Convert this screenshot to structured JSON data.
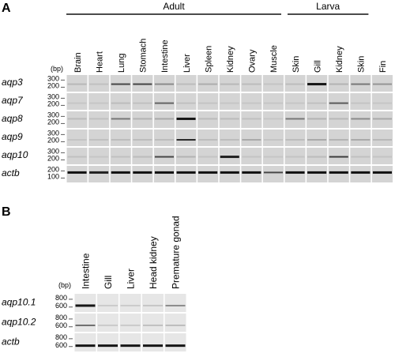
{
  "panel_a": {
    "letter": "A",
    "groups": [
      {
        "label": "Adult",
        "from": 0,
        "to": 10
      },
      {
        "label": "Larva",
        "from": 10,
        "to": 14
      }
    ],
    "bp_label": "(bp)",
    "lanes": [
      "Brain",
      "Heart",
      "Lung",
      "Stomach",
      "Intestine",
      "Liver",
      "Spleen",
      "Kidney",
      "Ovary",
      "Muscle",
      "Skin",
      "Gill",
      "Kidney",
      "Skin",
      "Fin"
    ],
    "rows": [
      {
        "gene": "aqp3",
        "ticks": [
          "300",
          "200"
        ],
        "band_pos": 0.55,
        "intensities": [
          0.12,
          0.08,
          0.7,
          0.72,
          0.35,
          0.1,
          0.18,
          0.12,
          0.1,
          0.06,
          0.1,
          0.95,
          0.15,
          0.45,
          0.3
        ]
      },
      {
        "gene": "aqp7",
        "ticks": [
          "300",
          "200"
        ],
        "band_pos": 0.6,
        "intensities": [
          0.05,
          0.05,
          0.1,
          0.08,
          0.55,
          0.08,
          0.06,
          0.05,
          0.05,
          0.05,
          0.05,
          0.08,
          0.6,
          0.06,
          0.05
        ]
      },
      {
        "gene": "aqp8",
        "ticks": [
          "300",
          "200"
        ],
        "band_pos": 0.45,
        "intensities": [
          0.1,
          0.08,
          0.45,
          0.15,
          0.2,
          0.95,
          0.1,
          0.1,
          0.08,
          0.05,
          0.45,
          0.15,
          0.12,
          0.35,
          0.2
        ]
      },
      {
        "gene": "aqp9",
        "ticks": [
          "300",
          "200"
        ],
        "band_pos": 0.62,
        "intensities": [
          0.06,
          0.08,
          0.1,
          0.1,
          0.1,
          0.85,
          0.1,
          0.1,
          0.2,
          0.06,
          0.1,
          0.2,
          0.15,
          0.2,
          0.12
        ]
      },
      {
        "gene": "aqp10",
        "ticks": [
          "300",
          "200"
        ],
        "band_pos": 0.55,
        "intensities": [
          0.08,
          0.05,
          0.08,
          0.1,
          0.7,
          0.15,
          0.06,
          0.9,
          0.06,
          0.05,
          0.06,
          0.1,
          0.75,
          0.08,
          0.06
        ]
      },
      {
        "gene": "actb",
        "ticks": [
          "200",
          "100"
        ],
        "band_pos": 0.4,
        "intensities": [
          0.98,
          0.9,
          0.98,
          0.98,
          0.98,
          0.98,
          0.98,
          0.98,
          0.98,
          0.7,
          0.98,
          0.98,
          0.98,
          0.98,
          0.98
        ]
      }
    ]
  },
  "panel_b": {
    "letter": "B",
    "bp_label": "(bp)",
    "lanes": [
      "Intestine",
      "Gill",
      "Liver",
      "Head kidney",
      "Premature gonad"
    ],
    "rows": [
      {
        "gene": "aqp10.1",
        "ticks": [
          "800",
          "600"
        ],
        "band_pos": 0.65,
        "intensities": [
          0.95,
          0.03,
          0.03,
          0.05,
          0.35
        ]
      },
      {
        "gene": "aqp10.2",
        "ticks": [
          "800",
          "600"
        ],
        "band_pos": 0.65,
        "intensities": [
          0.5,
          0.03,
          0.03,
          0.08,
          0.1
        ]
      },
      {
        "gene": "actb",
        "ticks": [
          "800",
          "600"
        ],
        "band_pos": 0.68,
        "intensities": [
          0.95,
          0.95,
          0.95,
          0.95,
          0.95
        ]
      }
    ]
  }
}
